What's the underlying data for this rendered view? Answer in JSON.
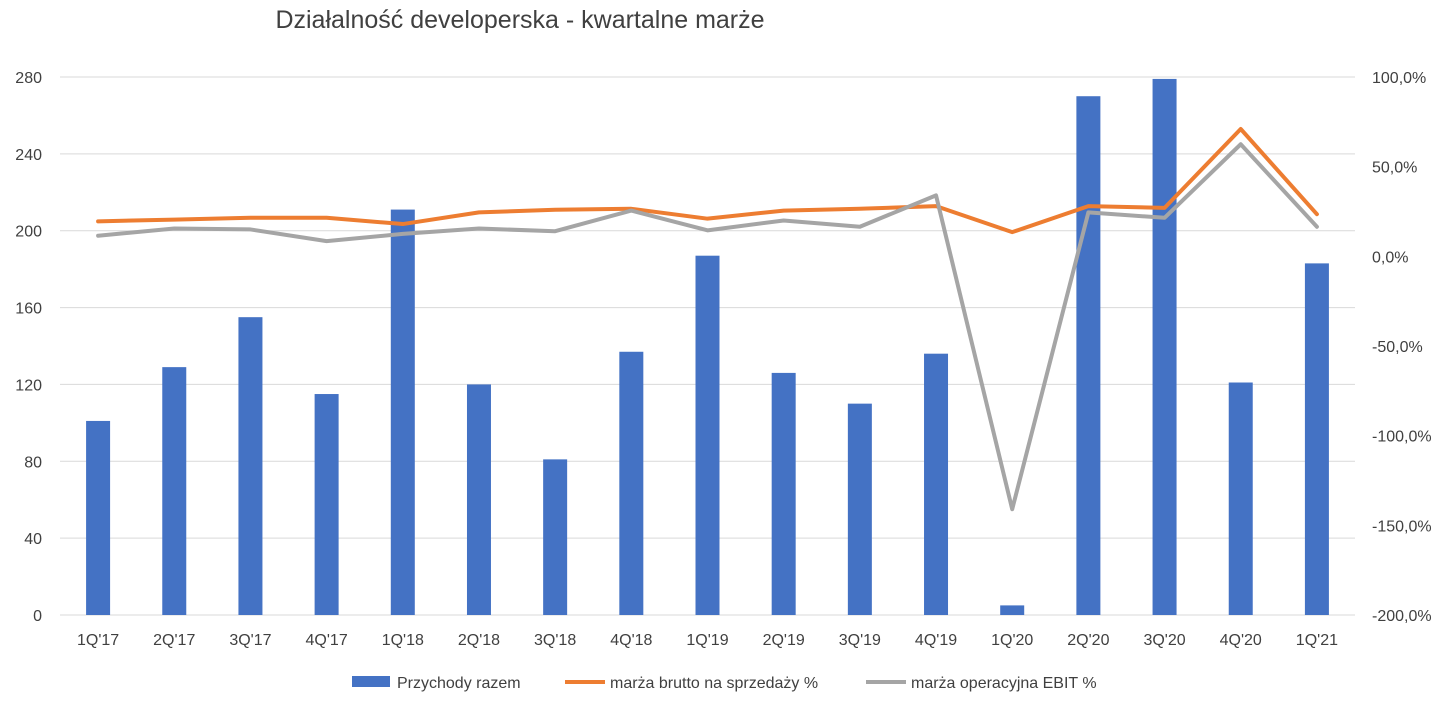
{
  "colors": {
    "bars": "#4472C4",
    "gross_margin": "#ED7D31",
    "ebit_margin": "#A5A5A5",
    "grid": "#D9D9D9",
    "text": "#404040"
  },
  "chart_data": {
    "type": "bar",
    "title": "Działalność developerska - kwartalne marże",
    "categories": [
      "1Q'17",
      "2Q'17",
      "3Q'17",
      "4Q'17",
      "1Q'18",
      "2Q'18",
      "3Q'18",
      "4Q'18",
      "1Q'19",
      "2Q'19",
      "3Q'19",
      "4Q'19",
      "1Q'20",
      "2Q'20",
      "3Q'20",
      "4Q'20",
      "1Q'21"
    ],
    "left_axis": {
      "min": 0,
      "max": 280,
      "step": 40,
      "ticks": [
        "0",
        "40",
        "80",
        "120",
        "160",
        "200",
        "240",
        "280"
      ]
    },
    "right_axis": {
      "min": -200,
      "max": 100,
      "step": 50,
      "ticks": [
        "-200,0%",
        "-150,0%",
        "-100,0%",
        "-50,0%",
        "0,0%",
        "50,0%",
        "100,0%"
      ]
    },
    "grid": true,
    "legend_position": "bottom",
    "series": [
      {
        "name": "Przychody razem",
        "kind": "bar",
        "axis": "left",
        "color_key": "bars",
        "values": [
          101,
          129,
          155,
          115,
          211,
          120,
          81,
          137,
          187,
          126,
          110,
          136,
          5,
          270,
          279,
          121,
          183
        ]
      },
      {
        "name": "marża brutto na sprzedaży %",
        "kind": "line",
        "axis": "right",
        "color_key": "gross_margin",
        "values": [
          19.5,
          20.5,
          21.5,
          21.5,
          18.0,
          24.5,
          26.0,
          26.5,
          21.0,
          25.5,
          26.5,
          28.0,
          13.5,
          28.0,
          27.0,
          71.0,
          23.5
        ]
      },
      {
        "name": "marża operacyjna EBIT %",
        "kind": "line",
        "axis": "right",
        "color_key": "ebit_margin",
        "values": [
          11.5,
          15.5,
          15.0,
          8.5,
          12.5,
          15.5,
          14.0,
          25.5,
          14.5,
          20.0,
          16.5,
          34.0,
          -141.0,
          24.5,
          21.5,
          62.5,
          16.5
        ]
      }
    ]
  }
}
